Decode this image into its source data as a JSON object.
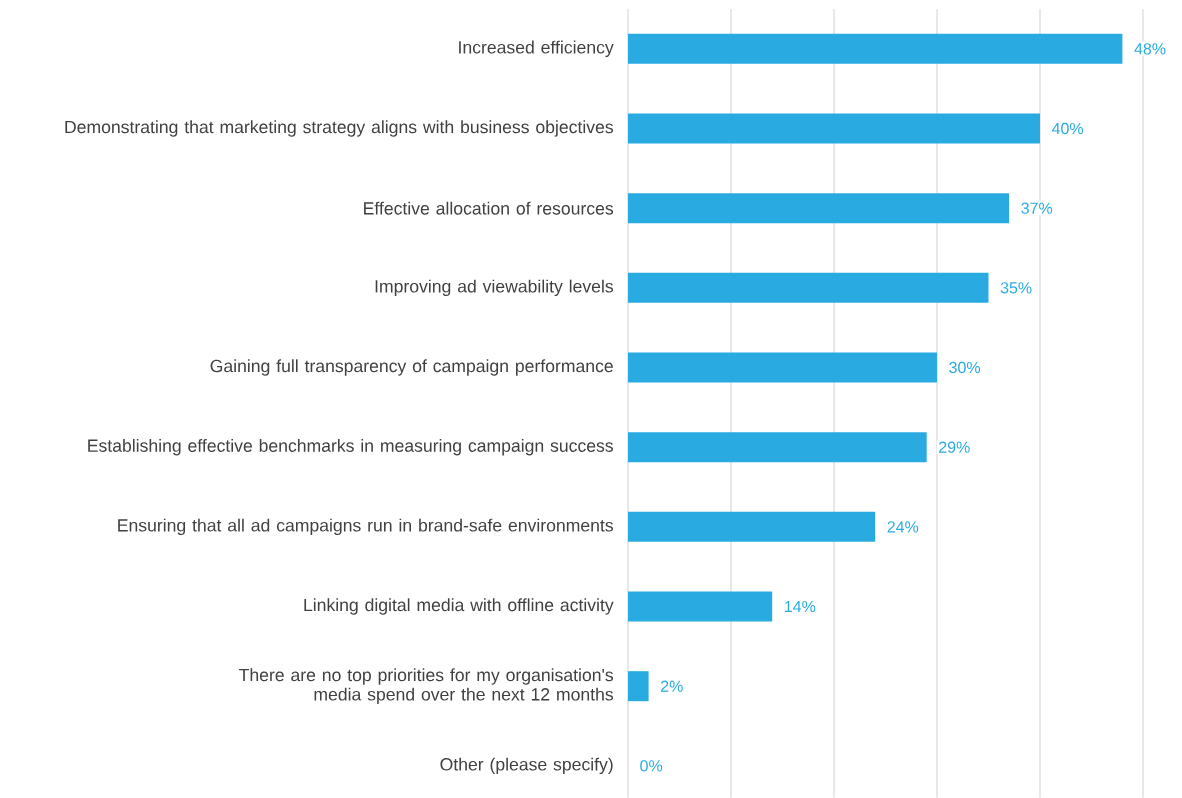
{
  "chart_data": {
    "type": "bar",
    "orientation": "horizontal",
    "categories": [
      "Increased efficiency",
      "Demonstrating that marketing strategy aligns with business objectives",
      "Effective allocation of resources",
      "Improving ad viewability levels",
      "Gaining full transparency of campaign performance",
      "Establishing effective benchmarks in measuring campaign success",
      "Ensuring that all ad campaigns run in brand-safe environments",
      "Linking digital media with offline activity",
      "There are no top priorities for my organisation's media spend over the next 12 months",
      "Other (please specify)"
    ],
    "values": [
      48,
      40,
      37,
      35,
      30,
      29,
      24,
      14,
      2,
      0
    ],
    "value_labels": [
      "48%",
      "40%",
      "37%",
      "35%",
      "30%",
      "29%",
      "24%",
      "14%",
      "2%",
      "0%"
    ],
    "color": "#29abe2",
    "xlim": [
      0,
      50
    ],
    "xticks": [
      {
        "value": 0,
        "label": null
      },
      {
        "value": 10,
        "label": null
      },
      {
        "value": 20,
        "label": null
      },
      {
        "value": 30,
        "label": null
      },
      {
        "value": 40,
        "label": null
      },
      {
        "value": 50,
        "label": null
      }
    ],
    "grid": "x",
    "tick_labels": "y"
  }
}
